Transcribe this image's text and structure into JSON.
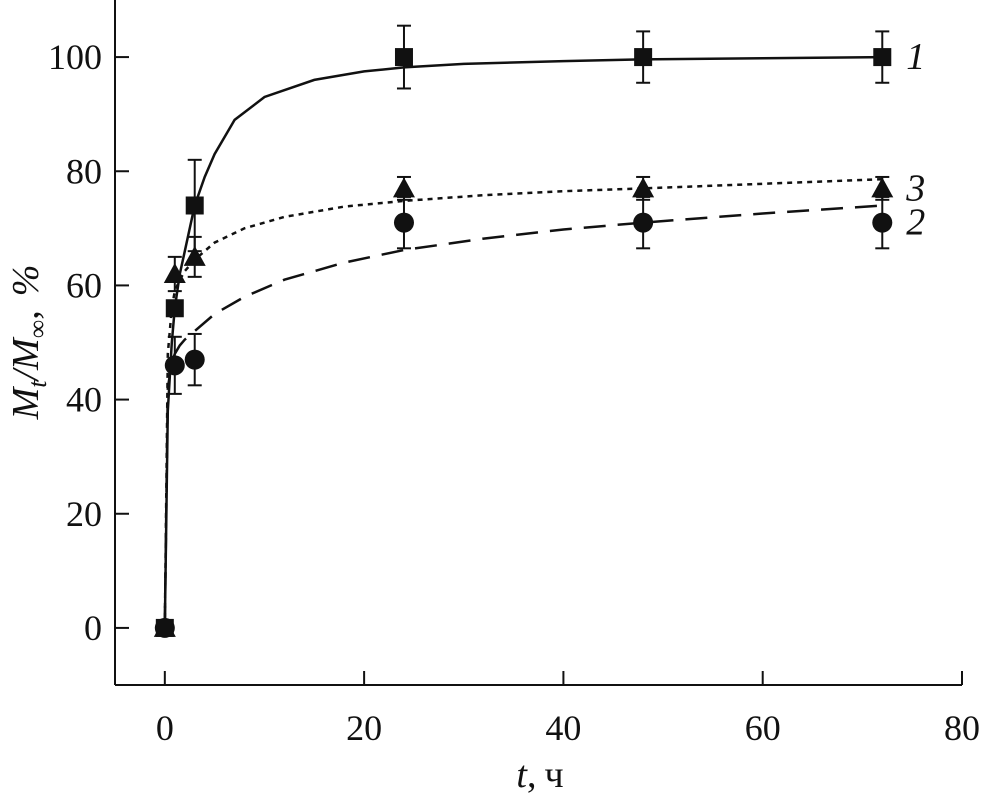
{
  "chart_data": {
    "type": "scatter",
    "title": "",
    "xlabel": {
      "var": "t",
      "sep": ",",
      "unit": "ч"
    },
    "ylabel": {
      "num": "M",
      "num_sub": "t",
      "slash": "/",
      "den": "M",
      "den_sub": "∞",
      "sep": ",",
      "unit": "%"
    },
    "xlim": [
      -5,
      80
    ],
    "ylim": [
      -10,
      110
    ],
    "xticks": [
      0,
      20,
      40,
      60,
      80
    ],
    "yticks": [
      0,
      20,
      40,
      60,
      80,
      100
    ],
    "xtick_labels": [
      "0",
      "20",
      "40",
      "60",
      "80"
    ],
    "ytick_labels": [
      "0",
      "20",
      "40",
      "60",
      "80",
      "100"
    ],
    "grid": false,
    "legend": "none",
    "series": [
      {
        "name": "1",
        "marker": "square",
        "line": "solid",
        "x": [
          0,
          1,
          3,
          24,
          48,
          72
        ],
        "y": [
          0,
          56,
          74,
          100,
          100,
          100
        ],
        "err": [
          0,
          0,
          8,
          5.5,
          4.5,
          4.5
        ],
        "fit": {
          "x": [
            0,
            0.3,
            0.7,
            1,
            1.5,
            2,
            3,
            4,
            5,
            7,
            10,
            15,
            20,
            24,
            30,
            40,
            48,
            60,
            72
          ],
          "y": [
            0,
            38,
            50,
            56,
            62,
            66,
            74,
            79,
            83,
            89,
            93,
            96,
            97.5,
            98.2,
            98.8,
            99.3,
            99.6,
            99.8,
            100
          ]
        }
      },
      {
        "name": "2",
        "marker": "circle",
        "line": "dashed",
        "x": [
          0,
          1,
          3,
          24,
          48,
          72
        ],
        "y": [
          0,
          46,
          47,
          71,
          71,
          71
        ],
        "err": [
          0,
          5,
          4.5,
          4.5,
          4.5,
          4.5
        ],
        "fit": {
          "x": [
            0,
            0.3,
            0.7,
            1,
            1.5,
            2,
            3,
            5,
            8,
            12,
            18,
            24,
            32,
            40,
            48,
            60,
            72
          ],
          "y": [
            0,
            42,
            46.5,
            48,
            49.5,
            50.5,
            52,
            55,
            58,
            61,
            64,
            66.2,
            68.2,
            69.8,
            71,
            72.6,
            74
          ]
        }
      },
      {
        "name": "3",
        "marker": "triangle",
        "line": "dotted",
        "x": [
          0,
          1,
          3,
          24,
          48,
          72
        ],
        "y": [
          0,
          62,
          65,
          77,
          77,
          77
        ],
        "err": [
          0,
          3,
          3.5,
          2,
          2,
          2
        ],
        "fit": {
          "x": [
            0,
            0.3,
            0.7,
            1,
            1.5,
            2,
            3,
            5,
            8,
            12,
            18,
            24,
            32,
            40,
            48,
            60,
            72
          ],
          "y": [
            0,
            48,
            56,
            59,
            61,
            62.5,
            64.5,
            67.5,
            70,
            72,
            73.8,
            74.8,
            75.8,
            76.5,
            77,
            77.8,
            78.6
          ]
        }
      }
    ]
  }
}
